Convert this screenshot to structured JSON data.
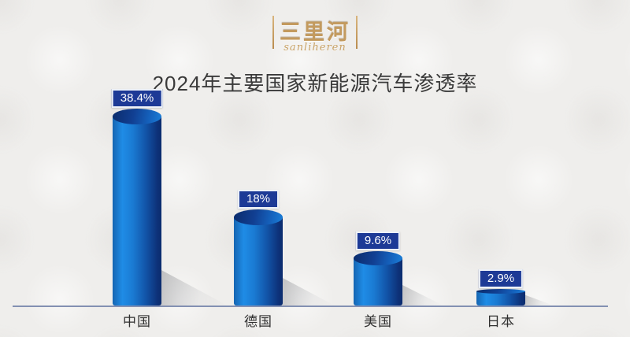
{
  "logo": {
    "brand_cn": "三里河",
    "brand_en": "sanliheren"
  },
  "header": {
    "title": "2024年主要国家新能源汽车渗透率"
  },
  "chart_data": {
    "type": "bar",
    "style": "3d-cylinder",
    "title": "2024年主要国家新能源汽车渗透率",
    "categories": [
      "中国",
      "德国",
      "美国",
      "日本"
    ],
    "values": [
      38.4,
      18,
      9.6,
      2.9
    ],
    "value_labels": [
      "38.4%",
      "18%",
      "9.6%",
      "2.9%"
    ],
    "unit": "%",
    "ylim": [
      0,
      40
    ],
    "grid": false,
    "legend": "none",
    "xlabel": "",
    "ylabel": "",
    "colors": {
      "bar_highlight": "#1f8ce6",
      "bar_main": "#1478d2",
      "bar_dark": "#0c2c6e",
      "label_box_bg": "#1d3a96",
      "label_box_border": "#edf1f8",
      "label_text": "#ffffff",
      "axis_line": "#8390b2",
      "title_text": "#3a3a3a",
      "category_text": "#303030",
      "logo_gold": "#c49a62",
      "background": "#efeeec"
    }
  }
}
